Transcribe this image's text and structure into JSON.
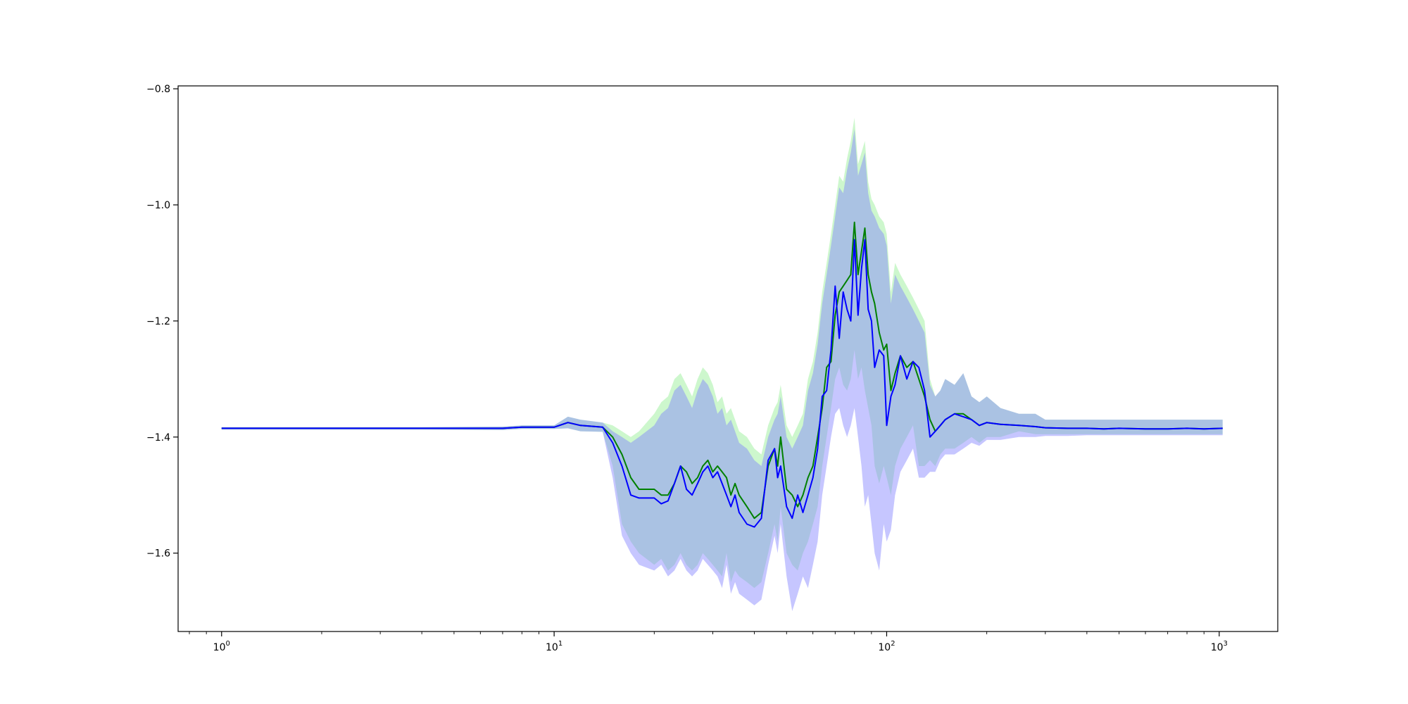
{
  "chart_data": {
    "type": "line",
    "title": "",
    "xlabel": "",
    "ylabel": "",
    "xscale": "log",
    "xlim": [
      0.74,
      1500
    ],
    "ylim": [
      -1.735,
      -0.795
    ],
    "grid": false,
    "legend": "none",
    "colors": {
      "green_line": "#008000",
      "blue_line": "#0000ff",
      "green_band": "#90ee90",
      "blue_band": "#8080ff",
      "axes": "#000000"
    },
    "xticks_major": [
      {
        "value": 1,
        "label": "10",
        "exp": "0"
      },
      {
        "value": 10,
        "label": "10",
        "exp": "1"
      },
      {
        "value": 100,
        "label": "10",
        "exp": "2"
      },
      {
        "value": 1000,
        "label": "10",
        "exp": "3"
      }
    ],
    "xticks_minor": [
      0.8,
      0.9,
      2,
      3,
      4,
      5,
      6,
      7,
      8,
      9,
      20,
      30,
      40,
      50,
      60,
      70,
      80,
      90,
      200,
      300,
      400,
      500,
      600,
      700,
      800,
      900
    ],
    "yticks": [
      {
        "value": -1.6,
        "label": "−1.6"
      },
      {
        "value": -1.4,
        "label": "−1.4"
      },
      {
        "value": -1.2,
        "label": "−1.2"
      },
      {
        "value": -1.0,
        "label": "−1.0"
      },
      {
        "value": -0.8,
        "label": "−0.8"
      }
    ],
    "series": [
      {
        "color": "#008000",
        "band_color": "#90ee90",
        "x": [
          1,
          2,
          4,
          7,
          8,
          10,
          11,
          12,
          14,
          15,
          16,
          17,
          18,
          20,
          21,
          22,
          23,
          24,
          25,
          26,
          27,
          28,
          29,
          30,
          31,
          32,
          33,
          34,
          35,
          36,
          38,
          40,
          42,
          44,
          46,
          47,
          48,
          50,
          52,
          54,
          56,
          58,
          60,
          62,
          64,
          66,
          68,
          70,
          72,
          74,
          76,
          78,
          80,
          82,
          84,
          86,
          88,
          90,
          92,
          95,
          98,
          100,
          103,
          106,
          110,
          115,
          120,
          125,
          130,
          135,
          140,
          145,
          150,
          160,
          170,
          180,
          190,
          200,
          220,
          250,
          280,
          300,
          350,
          400,
          450,
          500,
          600,
          700,
          800,
          900,
          1024
        ],
        "y": [
          -1.385,
          -1.385,
          -1.385,
          -1.385,
          -1.383,
          -1.383,
          -1.375,
          -1.38,
          -1.383,
          -1.4,
          -1.43,
          -1.47,
          -1.49,
          -1.49,
          -1.5,
          -1.5,
          -1.48,
          -1.45,
          -1.46,
          -1.48,
          -1.47,
          -1.45,
          -1.44,
          -1.46,
          -1.45,
          -1.46,
          -1.47,
          -1.5,
          -1.48,
          -1.5,
          -1.52,
          -1.54,
          -1.53,
          -1.45,
          -1.42,
          -1.45,
          -1.4,
          -1.49,
          -1.5,
          -1.52,
          -1.5,
          -1.47,
          -1.45,
          -1.4,
          -1.35,
          -1.28,
          -1.27,
          -1.19,
          -1.15,
          -1.14,
          -1.13,
          -1.12,
          -1.03,
          -1.12,
          -1.08,
          -1.04,
          -1.12,
          -1.15,
          -1.17,
          -1.22,
          -1.25,
          -1.24,
          -1.32,
          -1.29,
          -1.26,
          -1.28,
          -1.27,
          -1.3,
          -1.33,
          -1.37,
          -1.39,
          -1.38,
          -1.37,
          -1.36,
          -1.36,
          -1.37,
          -1.38,
          -1.375,
          -1.378,
          -1.38,
          -1.382,
          -1.384,
          -1.385,
          -1.385,
          -1.386,
          -1.385,
          -1.386,
          -1.386,
          -1.385,
          -1.386,
          -1.385
        ],
        "y_upper": [
          -1.383,
          -1.383,
          -1.383,
          -1.382,
          -1.38,
          -1.38,
          -1.365,
          -1.37,
          -1.375,
          -1.38,
          -1.39,
          -1.4,
          -1.39,
          -1.36,
          -1.34,
          -1.33,
          -1.3,
          -1.29,
          -1.31,
          -1.33,
          -1.3,
          -1.28,
          -1.29,
          -1.31,
          -1.34,
          -1.33,
          -1.36,
          -1.35,
          -1.37,
          -1.39,
          -1.4,
          -1.42,
          -1.43,
          -1.38,
          -1.35,
          -1.34,
          -1.31,
          -1.38,
          -1.4,
          -1.38,
          -1.36,
          -1.3,
          -1.27,
          -1.22,
          -1.15,
          -1.1,
          -1.05,
          -1.0,
          -0.95,
          -0.96,
          -0.92,
          -0.89,
          -0.85,
          -0.93,
          -0.91,
          -0.89,
          -0.96,
          -0.99,
          -1.0,
          -1.02,
          -1.03,
          -1.05,
          -1.15,
          -1.1,
          -1.12,
          -1.14,
          -1.16,
          -1.18,
          -1.2,
          -1.3,
          -1.33,
          -1.32,
          -1.3,
          -1.31,
          -1.29,
          -1.33,
          -1.34,
          -1.33,
          -1.35,
          -1.36,
          -1.36,
          -1.37,
          -1.37,
          -1.37,
          -1.37,
          -1.37,
          -1.37,
          -1.37,
          -1.37,
          -1.37,
          -1.37
        ],
        "y_lower": [
          -1.387,
          -1.387,
          -1.387,
          -1.388,
          -1.386,
          -1.386,
          -1.385,
          -1.39,
          -1.391,
          -1.45,
          -1.55,
          -1.58,
          -1.6,
          -1.62,
          -1.61,
          -1.63,
          -1.62,
          -1.6,
          -1.62,
          -1.63,
          -1.62,
          -1.6,
          -1.61,
          -1.62,
          -1.63,
          -1.64,
          -1.6,
          -1.65,
          -1.63,
          -1.64,
          -1.65,
          -1.66,
          -1.65,
          -1.6,
          -1.55,
          -1.58,
          -1.52,
          -1.6,
          -1.62,
          -1.63,
          -1.6,
          -1.58,
          -1.55,
          -1.52,
          -1.45,
          -1.4,
          -1.35,
          -1.3,
          -1.28,
          -1.31,
          -1.32,
          -1.3,
          -1.25,
          -1.3,
          -1.28,
          -1.32,
          -1.35,
          -1.38,
          -1.45,
          -1.48,
          -1.45,
          -1.47,
          -1.5,
          -1.45,
          -1.42,
          -1.4,
          -1.38,
          -1.45,
          -1.45,
          -1.44,
          -1.45,
          -1.43,
          -1.42,
          -1.42,
          -1.41,
          -1.4,
          -1.41,
          -1.4,
          -1.4,
          -1.39,
          -1.395,
          -1.395,
          -1.395,
          -1.395,
          -1.395,
          -1.395,
          -1.395,
          -1.395,
          -1.395,
          -1.395,
          -1.395
        ]
      },
      {
        "color": "#0000ff",
        "band_color": "#8080ff",
        "x": [
          1,
          2,
          4,
          7,
          8,
          10,
          11,
          12,
          14,
          15,
          16,
          17,
          18,
          20,
          21,
          22,
          23,
          24,
          25,
          26,
          27,
          28,
          29,
          30,
          31,
          32,
          33,
          34,
          35,
          36,
          38,
          40,
          42,
          44,
          46,
          47,
          48,
          50,
          52,
          54,
          56,
          58,
          60,
          62,
          64,
          66,
          68,
          70,
          72,
          74,
          76,
          78,
          80,
          82,
          84,
          86,
          88,
          90,
          92,
          95,
          98,
          100,
          103,
          106,
          110,
          115,
          120,
          125,
          130,
          135,
          140,
          145,
          150,
          160,
          170,
          180,
          190,
          200,
          220,
          250,
          280,
          300,
          350,
          400,
          450,
          500,
          600,
          700,
          800,
          900,
          1024
        ],
        "y": [
          -1.385,
          -1.385,
          -1.385,
          -1.385,
          -1.383,
          -1.383,
          -1.375,
          -1.38,
          -1.383,
          -1.41,
          -1.45,
          -1.5,
          -1.505,
          -1.505,
          -1.515,
          -1.51,
          -1.48,
          -1.45,
          -1.49,
          -1.5,
          -1.48,
          -1.46,
          -1.45,
          -1.47,
          -1.46,
          -1.48,
          -1.5,
          -1.52,
          -1.5,
          -1.53,
          -1.55,
          -1.555,
          -1.54,
          -1.44,
          -1.42,
          -1.47,
          -1.45,
          -1.52,
          -1.54,
          -1.5,
          -1.53,
          -1.5,
          -1.47,
          -1.42,
          -1.33,
          -1.32,
          -1.25,
          -1.14,
          -1.23,
          -1.15,
          -1.18,
          -1.2,
          -1.06,
          -1.19,
          -1.11,
          -1.06,
          -1.18,
          -1.2,
          -1.28,
          -1.25,
          -1.26,
          -1.38,
          -1.33,
          -1.31,
          -1.26,
          -1.3,
          -1.27,
          -1.28,
          -1.32,
          -1.4,
          -1.39,
          -1.38,
          -1.37,
          -1.36,
          -1.365,
          -1.37,
          -1.38,
          -1.375,
          -1.378,
          -1.38,
          -1.382,
          -1.384,
          -1.385,
          -1.385,
          -1.386,
          -1.385,
          -1.386,
          -1.386,
          -1.385,
          -1.386,
          -1.385
        ],
        "y_upper": [
          -1.383,
          -1.383,
          -1.383,
          -1.382,
          -1.38,
          -1.38,
          -1.365,
          -1.37,
          -1.375,
          -1.39,
          -1.4,
          -1.41,
          -1.4,
          -1.38,
          -1.36,
          -1.35,
          -1.32,
          -1.31,
          -1.33,
          -1.35,
          -1.32,
          -1.3,
          -1.31,
          -1.33,
          -1.36,
          -1.35,
          -1.38,
          -1.37,
          -1.39,
          -1.41,
          -1.42,
          -1.44,
          -1.45,
          -1.4,
          -1.37,
          -1.36,
          -1.33,
          -1.4,
          -1.42,
          -1.4,
          -1.38,
          -1.32,
          -1.29,
          -1.24,
          -1.17,
          -1.12,
          -1.07,
          -1.02,
          -0.97,
          -0.98,
          -0.94,
          -0.91,
          -0.87,
          -0.95,
          -0.93,
          -0.91,
          -0.98,
          -1.01,
          -1.02,
          -1.04,
          -1.05,
          -1.07,
          -1.17,
          -1.12,
          -1.14,
          -1.16,
          -1.18,
          -1.2,
          -1.22,
          -1.31,
          -1.33,
          -1.32,
          -1.3,
          -1.31,
          -1.29,
          -1.33,
          -1.34,
          -1.33,
          -1.35,
          -1.36,
          -1.36,
          -1.37,
          -1.37,
          -1.37,
          -1.37,
          -1.37,
          -1.37,
          -1.37,
          -1.37,
          -1.37,
          -1.37
        ],
        "y_lower": [
          -1.387,
          -1.387,
          -1.387,
          -1.388,
          -1.386,
          -1.386,
          -1.385,
          -1.39,
          -1.391,
          -1.47,
          -1.57,
          -1.6,
          -1.62,
          -1.63,
          -1.62,
          -1.64,
          -1.63,
          -1.61,
          -1.63,
          -1.64,
          -1.63,
          -1.61,
          -1.62,
          -1.63,
          -1.64,
          -1.66,
          -1.62,
          -1.67,
          -1.65,
          -1.67,
          -1.68,
          -1.69,
          -1.68,
          -1.62,
          -1.57,
          -1.6,
          -1.55,
          -1.64,
          -1.7,
          -1.67,
          -1.64,
          -1.66,
          -1.62,
          -1.58,
          -1.5,
          -1.45,
          -1.4,
          -1.36,
          -1.35,
          -1.38,
          -1.4,
          -1.38,
          -1.35,
          -1.4,
          -1.45,
          -1.52,
          -1.5,
          -1.55,
          -1.6,
          -1.63,
          -1.55,
          -1.58,
          -1.56,
          -1.5,
          -1.46,
          -1.44,
          -1.42,
          -1.47,
          -1.47,
          -1.46,
          -1.46,
          -1.44,
          -1.43,
          -1.43,
          -1.42,
          -1.41,
          -1.415,
          -1.405,
          -1.405,
          -1.4,
          -1.4,
          -1.398,
          -1.398,
          -1.397,
          -1.397,
          -1.397,
          -1.397,
          -1.397,
          -1.397,
          -1.397,
          -1.397
        ]
      }
    ]
  }
}
